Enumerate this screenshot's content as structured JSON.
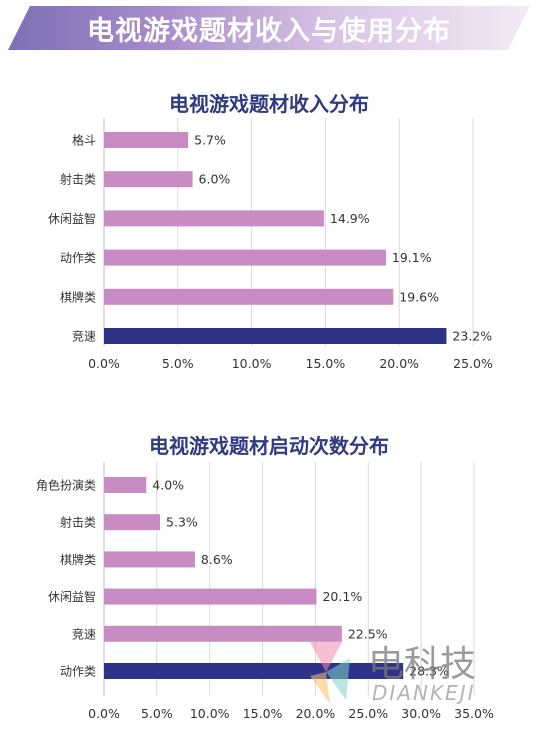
{
  "banner": {
    "title": "电视游戏题材收入与使用分布"
  },
  "chart_data": [
    {
      "type": "bar",
      "orientation": "horizontal",
      "title": "电视游戏题材收入分布",
      "categories": [
        "格斗",
        "射击类",
        "休闲益智",
        "动作类",
        "棋牌类",
        "竞速"
      ],
      "values": [
        5.7,
        6.0,
        14.9,
        19.1,
        19.6,
        23.2
      ],
      "value_labels": [
        "5.7%",
        "6.0%",
        "14.9%",
        "19.1%",
        "19.6%",
        "23.2%"
      ],
      "xlim": [
        0,
        25
      ],
      "xticks": [
        "0.0%",
        "5.0%",
        "10.0%",
        "15.0%",
        "20.0%",
        "25.0%"
      ],
      "grid": true,
      "colors": {
        "bar": "#c98bc3",
        "highlight": "#2e3388"
      },
      "highlight_index": 5
    },
    {
      "type": "bar",
      "orientation": "horizontal",
      "title": "电视游戏题材启动次数分布",
      "categories": [
        "角色扮演类",
        "射击类",
        "棋牌类",
        "休闲益智",
        "竞速",
        "动作类"
      ],
      "values": [
        4.0,
        5.3,
        8.6,
        20.1,
        22.5,
        28.3
      ],
      "value_labels": [
        "4.0%",
        "5.3%",
        "8.6%",
        "20.1%",
        "22.5%",
        "28.3%"
      ],
      "xlim": [
        0,
        35
      ],
      "xticks": [
        "0.0%",
        "5.0%",
        "10.0%",
        "15.0%",
        "20.0%",
        "25.0%",
        "30.0%",
        "35.0%"
      ],
      "grid": true,
      "colors": {
        "bar": "#c98bc3",
        "highlight": "#2e3388"
      },
      "highlight_index": 5
    }
  ],
  "watermark": {
    "brand": "电科技",
    "brand_latin": "DIANKEJI"
  }
}
